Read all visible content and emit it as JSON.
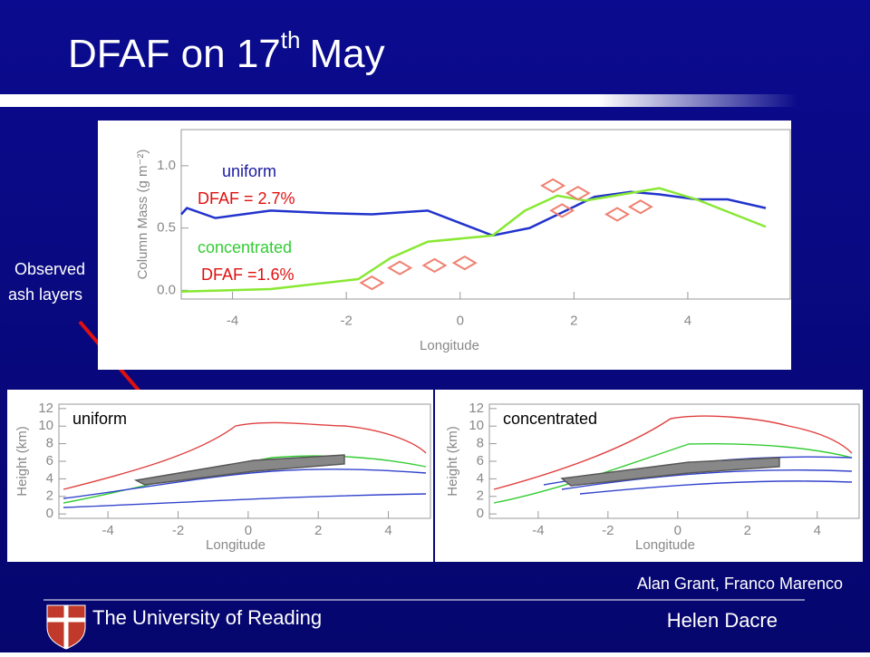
{
  "slide": {
    "title": "DFAF on 17",
    "title_sup": "th",
    "title_end": "May",
    "side_note": [
      "Observed",
      "ash layers"
    ],
    "credits": "Alan Grant, Franco Marenco",
    "footer": "The University of Reading",
    "author": "Helen Dacre"
  },
  "chart_data": [
    {
      "type": "line",
      "xlabel": "Longitude",
      "ylabel": "Column Mass (g m⁻²)",
      "xlim": [
        -4.9,
        5.8
      ],
      "ylim": [
        -0.07,
        1.29
      ],
      "xticks": [
        -4,
        -2,
        0,
        2,
        4
      ],
      "yticks": [
        {
          "value": 0,
          "label": "0.0"
        },
        {
          "value": 0.5,
          "label": "0.5"
        },
        {
          "value": 1,
          "label": "1.0"
        }
      ],
      "series": [
        {
          "color": "#2233cc",
          "x": [
            -4.9,
            -4.8,
            -4.3,
            -3.33,
            -2.36,
            -1.55,
            -0.57,
            0.57,
            1.22,
            2.36,
            3.0,
            3.5,
            4.15,
            4.7,
            5.37
          ],
          "values": [
            0.61,
            0.66,
            0.58,
            0.64,
            0.62,
            0.61,
            0.64,
            0.44,
            0.5,
            0.75,
            0.79,
            0.77,
            0.73,
            0.73,
            0.66
          ]
        },
        {
          "color": "#88e833",
          "x": [
            -4.9,
            -3.33,
            -1.79,
            -1.22,
            -0.57,
            0.57,
            1.14,
            1.71,
            2.2,
            2.85,
            3.5,
            4.15,
            5.37
          ],
          "values": [
            -0.01,
            0.01,
            0.09,
            0.26,
            0.39,
            0.44,
            0.64,
            0.76,
            0.72,
            0.77,
            0.82,
            0.73,
            0.51
          ]
        },
        {
          "type": "scatter",
          "color": "#f08070",
          "x": [
            -1.55,
            -1.06,
            -0.45,
            0.08,
            1.63,
            2.07,
            1.79,
            2.76,
            3.17
          ],
          "values": [
            0.06,
            0.18,
            0.2,
            0.22,
            0.84,
            0.78,
            0.64,
            0.61,
            0.67
          ]
        }
      ],
      "annotations": [
        {
          "text": "uniform",
          "color": "#1a1aa0"
        },
        {
          "text": "DFAF = 2.7%",
          "color": "#e01010"
        },
        {
          "text": "concentrated",
          "color": "#33cc33"
        },
        {
          "text": "DFAF =1.6%",
          "color": "#e01010"
        }
      ]
    },
    {
      "type": "contour",
      "title": "uniform",
      "xlabel": "Longitude",
      "ylabel": "Height (km)",
      "xlim": [
        -5.4,
        5.2
      ],
      "ylim": [
        -0.5,
        12.5
      ],
      "xticks": [
        -4,
        -2,
        0,
        2,
        4
      ],
      "yticks": [
        0,
        2,
        4,
        6,
        8,
        10,
        12
      ]
    },
    {
      "type": "contour",
      "title": "concentrated",
      "xlabel": "Longitude",
      "ylabel": "Height (km)",
      "xlim": [
        -5.4,
        5.2
      ],
      "ylim": [
        -0.5,
        12.5
      ],
      "xticks": [
        -4,
        -2,
        0,
        2,
        4
      ],
      "yticks": [
        0,
        2,
        4,
        6,
        8,
        10,
        12
      ]
    }
  ]
}
